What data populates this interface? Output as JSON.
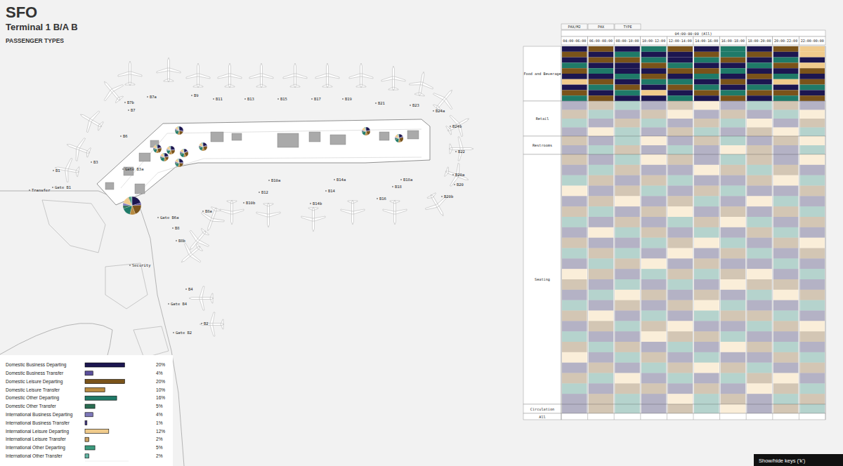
{
  "header": {
    "title": "SFO",
    "subtitle": "Terminal 1 B/A B",
    "section": "PASSENGER TYPES"
  },
  "map": {
    "labels": [
      "B7a",
      "B9",
      "B11",
      "B13",
      "B15",
      "B17",
      "B19",
      "B21",
      "B23",
      "B24a",
      "B24b",
      "B22",
      "B20a",
      "B20",
      "B20b",
      "B18a",
      "B18",
      "B16",
      "B14a",
      "B14",
      "B14b",
      "B10a",
      "B12",
      "B10b",
      "B8a",
      "B8",
      "B8b",
      "B7b",
      "B7",
      "B6",
      "B3",
      "B1",
      "Gate B1",
      "Gate B3a",
      "Transfer",
      "Gate B6a",
      "Security",
      "B4",
      "Gate B4",
      "B2",
      "Gate B2"
    ],
    "pies": [
      [
        25,
        5,
        18,
        8,
        15,
        6,
        5,
        1,
        10,
        2,
        3,
        2
      ],
      [
        18,
        4,
        24,
        10,
        14,
        5,
        4,
        1,
        13,
        2,
        3,
        2
      ],
      [
        22,
        3,
        20,
        12,
        16,
        4,
        3,
        1,
        11,
        3,
        3,
        2
      ],
      [
        15,
        5,
        22,
        9,
        18,
        6,
        5,
        2,
        12,
        2,
        2,
        2
      ],
      [
        20,
        4,
        16,
        11,
        20,
        5,
        4,
        1,
        12,
        2,
        3,
        2
      ],
      [
        24,
        4,
        19,
        8,
        14,
        6,
        5,
        1,
        12,
        2,
        3,
        2
      ],
      [
        19,
        5,
        21,
        10,
        15,
        5,
        4,
        1,
        13,
        2,
        3,
        2
      ],
      [
        21,
        3,
        20,
        10,
        17,
        4,
        4,
        1,
        12,
        3,
        3,
        2
      ],
      [
        17,
        4,
        23,
        9,
        16,
        6,
        4,
        1,
        13,
        2,
        3,
        2
      ],
      [
        20,
        4,
        20,
        10,
        16,
        5,
        4,
        1,
        12,
        2,
        4,
        2
      ]
    ]
  },
  "chart_data": [
    {
      "type": "bar",
      "orientation": "horizontal",
      "categories": [
        "Domestic Business Departing",
        "Domestic Business Transfer",
        "Domestic Leisure Departing",
        "Domestic Leisure Transfer",
        "Domestic Other Departing",
        "Domestic Other Transfer",
        "International Business Departing",
        "International Business Transfer",
        "International Leisure Departing",
        "International Leisure Transfer",
        "International Other Departing",
        "International Other Transfer"
      ],
      "values": [
        20,
        4,
        20,
        10,
        16,
        5,
        4,
        1,
        12,
        2,
        5,
        2
      ],
      "value_labels": [
        "20%",
        "4%",
        "20%",
        "10%",
        "16%",
        "5%",
        "4%",
        "1%",
        "12%",
        "2%",
        "5%",
        "2%"
      ],
      "colors": [
        "#1c1650",
        "#5b4f9c",
        "#7a531a",
        "#b88a40",
        "#1f7a68",
        "#2a6d52",
        "#7d77b9",
        "#463c88",
        "#f0cb8c",
        "#c9a062",
        "#3b9a7d",
        "#61b4a2"
      ],
      "xlim": [
        0,
        22
      ],
      "tick_labels": false,
      "data_labels": true
    },
    {
      "type": "heatmap",
      "tabs": [
        "PAX/M2",
        "PAX",
        "TYPE"
      ],
      "title": "04:00-00:00 (All)",
      "x": [
        "04:00-06:00",
        "06:00-08:00",
        "08:00-10:00",
        "10:00-12:00",
        "12:00-14:00",
        "14:00-16:00",
        "16:00-18:00",
        "18:00-20:00",
        "20:00-22:00",
        "22:00-00:00"
      ],
      "sections": [
        {
          "label": "Food and Beverage",
          "cells": [
            [
              0,
              2,
              0,
              4,
              2,
              0,
              4,
              0,
              2,
              8
            ],
            [
              2,
              0,
              4,
              0,
              0,
              2,
              4,
              2,
              0,
              8
            ],
            [
              0,
              2,
              2,
              4,
              0,
              4,
              2,
              0,
              4,
              0
            ],
            [
              4,
              0,
              0,
              2,
              4,
              0,
              0,
              4,
              2,
              8
            ],
            [
              2,
              4,
              0,
              0,
              2,
              2,
              4,
              0,
              0,
              2
            ],
            [
              0,
              0,
              4,
              2,
              0,
              4,
              0,
              2,
              4,
              0
            ],
            [
              8,
              2,
              0,
              4,
              4,
              0,
              2,
              0,
              8,
              2
            ],
            [
              0,
              4,
              2,
              0,
              2,
              4,
              0,
              4,
              0,
              4
            ],
            [
              2,
              0,
              4,
              8,
              0,
              2,
              4,
              2,
              2,
              0
            ],
            [
              4,
              2,
              0,
              0,
              4,
              0,
              2,
              0,
              4,
              2
            ]
          ]
        },
        {
          "label": "Retail",
          "cells": [
            [
              0,
              2,
              4,
              0,
              2,
              8,
              0,
              4,
              2,
              0
            ],
            [
              2,
              4,
              0,
              2,
              8,
              0,
              2,
              0,
              4,
              8
            ],
            [
              4,
              0,
              2,
              4,
              0,
              2,
              4,
              8,
              0,
              2
            ],
            [
              0,
              8,
              4,
              0,
              2,
              4,
              0,
              2,
              8,
              4
            ]
          ]
        },
        {
          "label": "Restrooms",
          "cells": [
            [
              2,
              0,
              4,
              8,
              0,
              2,
              4,
              0,
              2,
              8
            ],
            [
              0,
              4,
              2,
              0,
              4,
              0,
              8,
              2,
              0,
              4
            ]
          ]
        },
        {
          "label": "Seating",
          "cells": [
            [
              2,
              0,
              4,
              8,
              2,
              0,
              4,
              2,
              0,
              8
            ],
            [
              0,
              4,
              2,
              0,
              0,
              8,
              2,
              4,
              2,
              0
            ],
            [
              4,
              2,
              0,
              2,
              4,
              0,
              0,
              2,
              8,
              4
            ],
            [
              8,
              0,
              2,
              4,
              0,
              2,
              4,
              0,
              0,
              2
            ],
            [
              0,
              2,
              8,
              0,
              2,
              4,
              0,
              8,
              4,
              0
            ],
            [
              2,
              4,
              0,
              2,
              8,
              0,
              2,
              0,
              2,
              4
            ],
            [
              4,
              0,
              2,
              0,
              4,
              2,
              8,
              4,
              0,
              2
            ],
            [
              0,
              8,
              4,
              2,
              0,
              4,
              0,
              2,
              4,
              0
            ],
            [
              2,
              0,
              0,
              4,
              2,
              8,
              4,
              0,
              2,
              8
            ],
            [
              4,
              2,
              4,
              0,
              8,
              0,
              2,
              4,
              0,
              2
            ],
            [
              0,
              4,
              2,
              8,
              0,
              2,
              0,
              0,
              4,
              0
            ],
            [
              8,
              2,
              0,
              4,
              2,
              4,
              2,
              8,
              0,
              4
            ],
            [
              2,
              0,
              4,
              0,
              4,
              0,
              8,
              2,
              2,
              0
            ],
            [
              0,
              4,
              8,
              2,
              0,
              2,
              0,
              4,
              8,
              2
            ],
            [
              4,
              0,
              2,
              0,
              2,
              8,
              4,
              0,
              0,
              4
            ],
            [
              2,
              8,
              0,
              4,
              0,
              4,
              2,
              2,
              4,
              0
            ],
            [
              0,
              2,
              4,
              2,
              8,
              0,
              0,
              4,
              2,
              8
            ],
            [
              4,
              0,
              0,
              8,
              2,
              2,
              4,
              0,
              0,
              2
            ],
            [
              2,
              4,
              2,
              0,
              4,
              0,
              8,
              2,
              4,
              0
            ],
            [
              8,
              0,
              4,
              2,
              0,
              4,
              0,
              0,
              2,
              4
            ],
            [
              0,
              2,
              0,
              4,
              2,
              8,
              2,
              4,
              0,
              2
            ],
            [
              2,
              4,
              8,
              0,
              4,
              0,
              4,
              2,
              8,
              0
            ],
            [
              4,
              0,
              2,
              2,
              0,
              2,
              0,
              8,
              2,
              4
            ],
            [
              0,
              2,
              4,
              0,
              8,
              4,
              2,
              0,
              4,
              2
            ]
          ]
        },
        {
          "label": "Circulation",
          "cells": [
            [
              0,
              2,
              4,
              0,
              2,
              4,
              8,
              0,
              2,
              4
            ]
          ]
        },
        {
          "label": "All",
          "cells": []
        }
      ]
    }
  ],
  "footer": {
    "button": "Show/hide keys ('k')"
  }
}
